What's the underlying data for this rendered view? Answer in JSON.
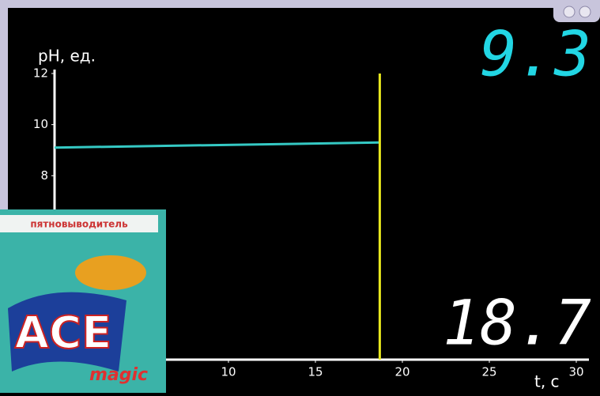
{
  "chart_data": {
    "type": "line",
    "y_label": "pH, ед.",
    "x_label": "t, с",
    "x": [
      0,
      18.7
    ],
    "series": [
      {
        "name": "pH",
        "color": "#35c9c4",
        "values": [
          9.1,
          9.3
        ]
      }
    ],
    "xlim": [
      0,
      30
    ],
    "xticks": [
      10,
      15,
      20,
      25,
      30
    ],
    "ylim": [
      0.8,
      12
    ],
    "yticks": [
      8,
      10,
      12
    ],
    "cursor_x": 18.7,
    "cursor_color": "#e8e81e",
    "readout_y": "9.3",
    "readout_x": "18.7"
  },
  "photo": {
    "brand": "ACE",
    "subtitle": "magic",
    "banner": "пятновыводитель"
  }
}
